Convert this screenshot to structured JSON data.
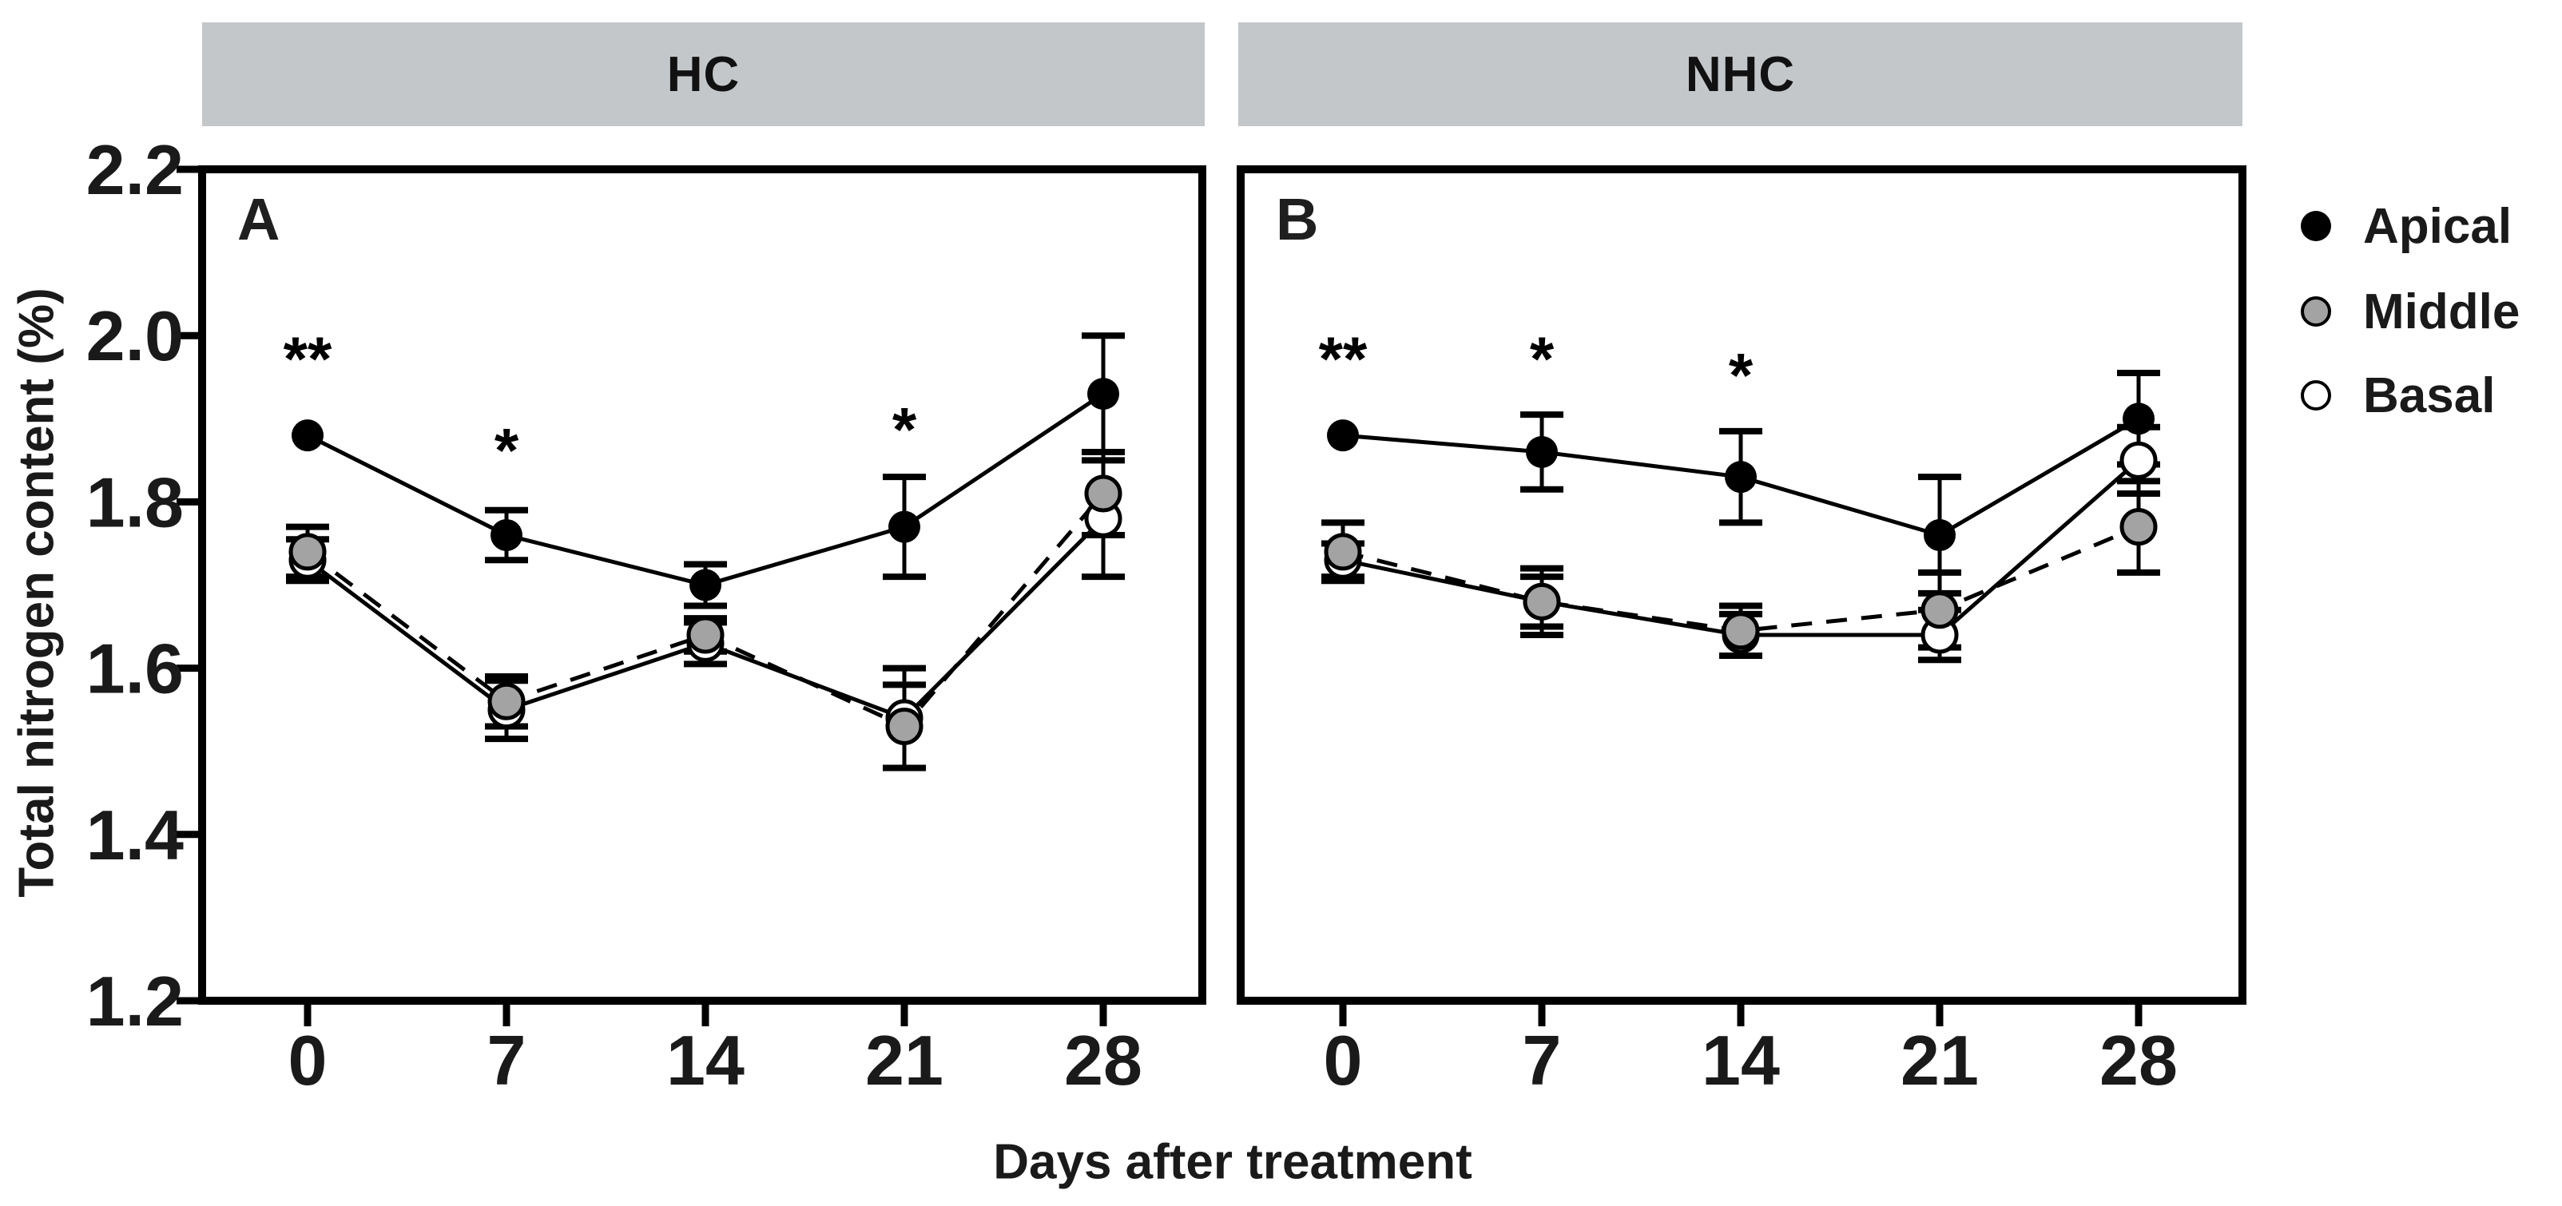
{
  "figure": {
    "x_label": "Days after treatment",
    "y_label": "Total nitrogen content (%)",
    "background": "#ffffff",
    "header_bg": "#c4c7ca",
    "axis_color": "#000000",
    "text_color": "#1a1a1a",
    "gray_marker_color": "#a3a3a3"
  },
  "legend": {
    "position": "right",
    "items": [
      {
        "label": "Apical",
        "marker": "filled-black-circle-icon",
        "fill": "#000000"
      },
      {
        "label": "Middle",
        "marker": "filled-gray-circle-icon",
        "fill": "#a3a3a3"
      },
      {
        "label": "Basal",
        "marker": "open-circle-icon",
        "fill": "#ffffff"
      }
    ]
  },
  "chart_data": [
    {
      "type": "line",
      "panel_letter": "A",
      "facet": "HC",
      "x": [
        0,
        7,
        14,
        21,
        28
      ],
      "x_tick_labels": [
        "0",
        "7",
        "14",
        "21",
        "28"
      ],
      "xlabel": "Days after treatment",
      "ylabel": "Total nitrogen content (%)",
      "ylim": [
        1.2,
        2.2
      ],
      "yticks": [
        2.2,
        2.0,
        1.8,
        1.6,
        1.4,
        1.2
      ],
      "grid": false,
      "series": [
        {
          "name": "Apical",
          "line": "solid",
          "marker": "filled-black",
          "values": [
            1.88,
            1.76,
            1.7,
            1.77,
            1.93
          ],
          "errors": [
            0,
            0.03,
            0.025,
            0.06,
            0.07
          ]
        },
        {
          "name": "Middle",
          "line": "dashed",
          "marker": "filled-gray",
          "values": [
            1.74,
            1.56,
            1.64,
            1.53,
            1.81
          ],
          "errors": [
            0.03,
            0.03,
            0.02,
            0.05,
            0.05
          ]
        },
        {
          "name": "Basal",
          "line": "solid",
          "marker": "open",
          "values": [
            1.73,
            1.55,
            1.63,
            1.54,
            1.78
          ],
          "errors": [
            0.025,
            0.035,
            0.025,
            0.06,
            0.07
          ]
        }
      ],
      "significance": [
        {
          "x": 0,
          "symbol": "**",
          "y": 1.985
        },
        {
          "x": 7,
          "symbol": "*",
          "y": 1.875
        },
        {
          "x": 21,
          "symbol": "*",
          "y": 1.9
        }
      ]
    },
    {
      "type": "line",
      "panel_letter": "B",
      "facet": "NHC",
      "x": [
        0,
        7,
        14,
        21,
        28
      ],
      "x_tick_labels": [
        "0",
        "7",
        "14",
        "21",
        "28"
      ],
      "xlabel": "Days after treatment",
      "ylabel": "Total nitrogen content (%)",
      "ylim": [
        1.2,
        2.2
      ],
      "yticks": [
        2.2,
        2.0,
        1.8,
        1.6,
        1.4,
        1.2
      ],
      "grid": false,
      "series": [
        {
          "name": "Apical",
          "line": "solid",
          "marker": "filled-black",
          "values": [
            1.88,
            1.86,
            1.83,
            1.76,
            1.9
          ],
          "errors": [
            0,
            0.045,
            0.055,
            0.07,
            0.055
          ]
        },
        {
          "name": "Middle",
          "line": "dashed",
          "marker": "filled-gray",
          "values": [
            1.74,
            1.68,
            1.645,
            1.67,
            1.77
          ],
          "errors": [
            0.035,
            0.04,
            0.03,
            0.045,
            0.055
          ]
        },
        {
          "name": "Basal",
          "line": "solid",
          "marker": "open",
          "values": [
            1.73,
            1.68,
            1.64,
            1.64,
            1.85
          ],
          "errors": [
            0.02,
            0.03,
            0.025,
            0.03,
            0.04
          ]
        }
      ],
      "significance": [
        {
          "x": 0,
          "symbol": "**",
          "y": 1.985
        },
        {
          "x": 7,
          "symbol": "*",
          "y": 1.985
        },
        {
          "x": 14,
          "symbol": "*",
          "y": 1.965
        }
      ]
    }
  ]
}
